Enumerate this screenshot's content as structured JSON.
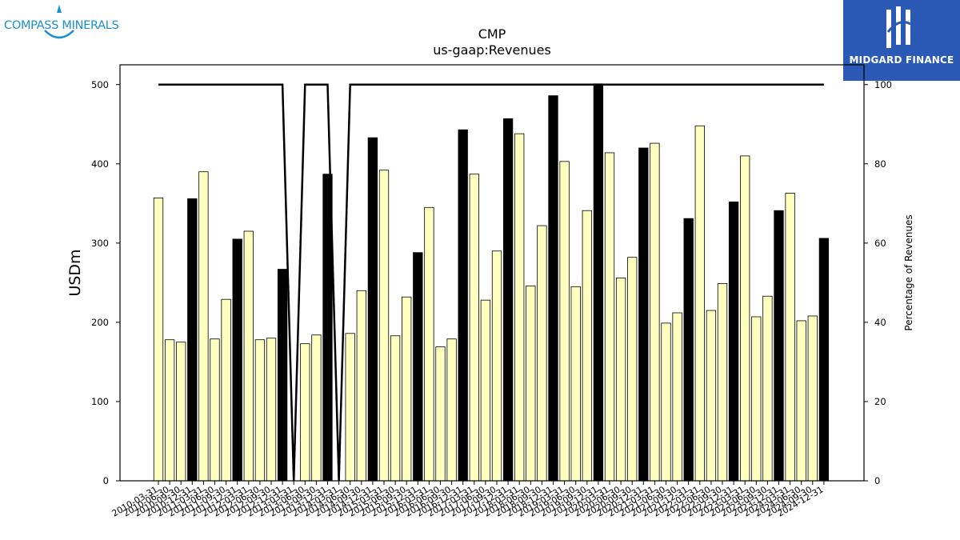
{
  "logos": {
    "left_text": "COMPASS MINERALS",
    "right_text": "MIDGARD FINANCE"
  },
  "colors": {
    "bar_default": "#ffffc0",
    "bar_highlight": "#000000",
    "line": "#000000",
    "brand_right_bg": "#2a5ab5",
    "brand_left_text": "#1a8fd0"
  },
  "chart_data": {
    "type": "bar",
    "title": "CMP",
    "subtitle": "us-gaap:Revenues",
    "ylabel": "USDm",
    "y2label": "Percentage of Revenues",
    "ylim": [
      0,
      525
    ],
    "y2lim": [
      0,
      105
    ],
    "yticks": [
      0,
      100,
      200,
      300,
      400,
      500
    ],
    "y2ticks": [
      0,
      20,
      40,
      60,
      80,
      100
    ],
    "categories": [
      "2010-03-31",
      "2010-06-30",
      "2010-09-30",
      "2010-12-31",
      "2011-03-31",
      "2011-06-30",
      "2011-09-30",
      "2011-12-31",
      "2012-03-31",
      "2012-06-30",
      "2012-09-30",
      "2012-12-31",
      "2013-03-31",
      "2013-06-30",
      "2013-09-30",
      "2013-12-31",
      "2014-03-31",
      "2014-06-30",
      "2014-09-30",
      "2014-12-31",
      "2015-03-31",
      "2015-06-30",
      "2015-09-30",
      "2015-12-31",
      "2016-03-31",
      "2016-06-30",
      "2016-09-30",
      "2016-12-31",
      "2017-03-31",
      "2017-06-30",
      "2017-09-30",
      "2017-12-31",
      "2018-03-31",
      "2018-06-30",
      "2018-09-30",
      "2018-12-31",
      "2019-03-31",
      "2019-06-30",
      "2019-09-30",
      "2019-12-31",
      "2020-03-31",
      "2020-06-30",
      "2020-09-30",
      "2020-12-31",
      "2021-03-31",
      "2021-06-30",
      "2021-09-30",
      "2021-12-31",
      "2022-03-31",
      "2022-06-30",
      "2022-09-30",
      "2022-12-31",
      "2023-03-31",
      "2023-06-30",
      "2023-09-30",
      "2023-12-31",
      "2024-03-31",
      "2024-06-30",
      "2024-09-30",
      "2024-12-31"
    ],
    "xtick_labels": [
      "2010-03-31",
      "2010-06-30",
      "2010-09-30",
      "2010-12-31",
      "2011-03-31",
      "2011-06-30",
      "2011-09-30",
      "2011-12-31",
      "2012-03-31",
      "2012-06-30",
      "2012-09-30",
      "2012-12-31",
      "2013-03-31",
      "2013-06-30",
      "2013-09-30",
      "2013-12-31",
      "2014-03-31",
      "2014-06-30",
      "2014-09-30",
      "2014-12-31",
      "2015-03-31",
      "2015-06-30",
      "2015-09-30",
      "2015-12-31",
      "2016-03-31",
      "2016-06-30",
      "2016-09-30",
      "2016-12-31",
      "2017-03-31",
      "2017-06-30",
      "2017-09-30",
      "2017-12-31",
      "2018-03-31",
      "2018-06-30",
      "2018-09-30",
      "2018-12-31",
      "2019-03-31",
      "2019-06-30",
      "2019-09-30",
      "2019-12-31",
      "2020-03-31",
      "2020-06-30",
      "2020-09-30",
      "2020-12-31",
      "2021-03-31",
      "2021-06-30",
      "2021-09-30",
      "2021-12-31",
      "2022-03-31",
      "2022-06-30",
      "2022-09-30",
      "2022-12-31",
      "2023-03-31",
      "2023-06-30",
      "2023-09-30",
      "2023-12-31",
      "2024-03-31",
      "2024-06-30",
      "2024-09-30",
      "2024-12-31"
    ],
    "series": [
      {
        "type": "bar",
        "axis": "left",
        "values": [
          357,
          178,
          175,
          356,
          390,
          179,
          229,
          305,
          315,
          178,
          180,
          267,
          0,
          173,
          184,
          387,
          0,
          186,
          240,
          433,
          392,
          183,
          232,
          288,
          345,
          169,
          179,
          443,
          387,
          228,
          290,
          457,
          438,
          246,
          322,
          486,
          403,
          245,
          341,
          501,
          414,
          256,
          282,
          420,
          426,
          199,
          212,
          331,
          448,
          215,
          249,
          352,
          410,
          207,
          233,
          341,
          363,
          202,
          208,
          306
        ],
        "highlight": [
          false,
          false,
          false,
          true,
          false,
          false,
          false,
          true,
          false,
          false,
          false,
          true,
          false,
          false,
          false,
          true,
          false,
          false,
          false,
          true,
          false,
          false,
          false,
          true,
          false,
          false,
          false,
          true,
          false,
          false,
          false,
          true,
          false,
          false,
          false,
          true,
          false,
          false,
          false,
          true,
          false,
          false,
          false,
          true,
          false,
          false,
          false,
          true,
          false,
          false,
          false,
          true,
          false,
          false,
          false,
          true,
          false,
          false,
          false,
          true
        ]
      },
      {
        "type": "line",
        "axis": "right",
        "values": [
          100,
          100,
          100,
          100,
          100,
          100,
          100,
          100,
          100,
          100,
          100,
          100,
          0,
          100,
          100,
          100,
          0,
          100,
          100,
          100,
          100,
          100,
          100,
          100,
          100,
          100,
          100,
          100,
          100,
          100,
          100,
          100,
          100,
          100,
          100,
          100,
          100,
          100,
          100,
          100,
          100,
          100,
          100,
          100,
          100,
          100,
          100,
          100,
          100,
          100,
          100,
          100,
          100,
          100,
          100,
          100,
          100,
          100,
          100,
          100
        ]
      }
    ]
  }
}
